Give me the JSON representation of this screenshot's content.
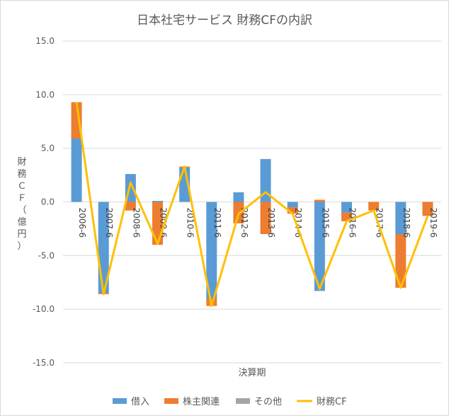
{
  "chart_data": {
    "type": "bar",
    "stacked": true,
    "title": "日本社宅サービス 財務CFの内訳",
    "xlabel": "決算期",
    "ylabel": "財務ＣＦ（億円）",
    "ylabel_chars": [
      "財",
      "務",
      "Ｃ",
      "Ｆ",
      "（",
      "億",
      "円",
      "）"
    ],
    "categories": [
      "2006-6",
      "2007-6",
      "2008-6",
      "2009-6",
      "2010-6",
      "2011-6",
      "2012-6",
      "2013-6",
      "2014-6",
      "2015-6",
      "2016-6",
      "2017-6",
      "2018-6",
      "2019-6"
    ],
    "series": [
      {
        "name": "借入",
        "kind": "bar",
        "color": "#5b9bd5",
        "values": [
          5.9,
          -8.5,
          2.6,
          0.1,
          3.2,
          -9.0,
          0.9,
          4.0,
          -0.5,
          -8.3,
          -1.0,
          0.0,
          -3.0,
          0.0
        ]
      },
      {
        "name": "株主関連",
        "kind": "bar",
        "color": "#ed7d31",
        "values": [
          3.4,
          -0.1,
          -0.8,
          -4.0,
          0.1,
          -0.7,
          -2.0,
          -3.0,
          -0.6,
          0.2,
          -0.8,
          -0.8,
          -5.0,
          -1.3
        ]
      },
      {
        "name": "その他",
        "kind": "bar",
        "color": "#a5a5a5",
        "values": [
          0,
          0,
          0,
          0,
          0,
          0,
          0,
          0,
          0,
          0,
          0,
          0,
          0,
          0
        ]
      },
      {
        "name": "財務CF",
        "kind": "line",
        "color": "#ffc000",
        "values": [
          9.3,
          -8.6,
          1.8,
          -3.9,
          3.3,
          -9.7,
          -1.1,
          0.9,
          -1.1,
          -8.1,
          -1.8,
          -0.8,
          -8.0,
          -1.3
        ]
      }
    ],
    "ylim": [
      -15,
      15
    ],
    "yticks": [
      "15.0",
      "10.0",
      "5.0",
      "0.0",
      "-5.0",
      "-10.0",
      "-15.0"
    ],
    "grid": true,
    "legend_position": "bottom"
  }
}
